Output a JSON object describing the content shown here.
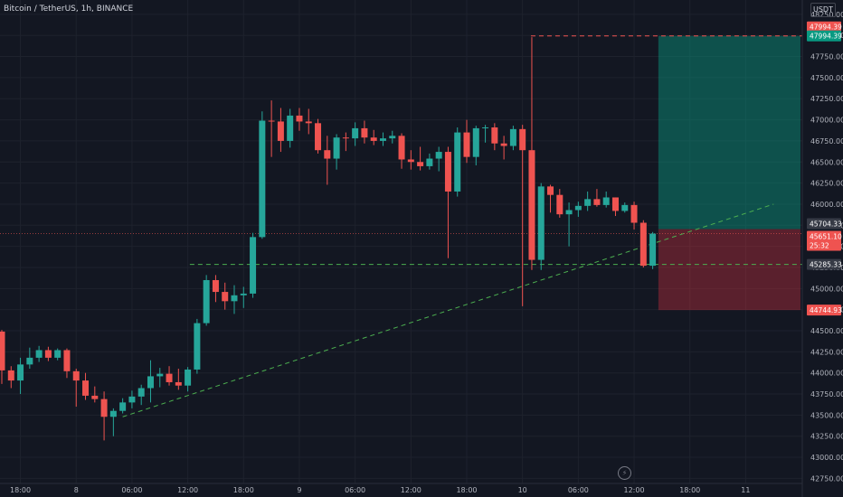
{
  "header": {
    "title": "Bitcoin / TetherUS, 1h, BINANCE",
    "unit": "USDT"
  },
  "icons": {
    "replay": "lightning-icon"
  },
  "colors": {
    "background": "#131722",
    "up": "#26a69a",
    "down": "#ef5350",
    "grid": "#1e222d",
    "text": "#b2b5be"
  },
  "chart_data": {
    "type": "candlestick",
    "symbol": "Bitcoin / TetherUS",
    "interval": "1h",
    "exchange": "BINANCE",
    "ylim": [
      42690,
      48420
    ],
    "y_ticks": [
      42750,
      43000,
      43250,
      43500,
      43750,
      44000,
      44250,
      44500,
      44750,
      45000,
      45250,
      45500,
      45750,
      46000,
      46250,
      46500,
      46750,
      47000,
      47250,
      47500,
      47750,
      48000,
      48250
    ],
    "x_ticks": [
      {
        "label": "18:00",
        "t": 2
      },
      {
        "label": "8",
        "t": 8
      },
      {
        "label": "06:00",
        "t": 14
      },
      {
        "label": "12:00",
        "t": 20
      },
      {
        "label": "18:00",
        "t": 26
      },
      {
        "label": "9",
        "t": 32
      },
      {
        "label": "06:00",
        "t": 38
      },
      {
        "label": "12:00",
        "t": 44
      },
      {
        "label": "18:00",
        "t": 50
      },
      {
        "label": "10",
        "t": 56
      },
      {
        "label": "06:00",
        "t": 62
      },
      {
        "label": "12:00",
        "t": 68
      },
      {
        "label": "18:00",
        "t": 74
      },
      {
        "label": "11",
        "t": 80
      }
    ],
    "candles": [
      {
        "t": 0,
        "o": 44490,
        "h": 44510,
        "l": 43870,
        "c": 44030
      },
      {
        "t": 1,
        "o": 44030,
        "h": 44080,
        "l": 43820,
        "c": 43910
      },
      {
        "t": 2,
        "o": 43910,
        "h": 44180,
        "l": 43750,
        "c": 44100
      },
      {
        "t": 3,
        "o": 44100,
        "h": 44300,
        "l": 44050,
        "c": 44180
      },
      {
        "t": 4,
        "o": 44180,
        "h": 44320,
        "l": 44130,
        "c": 44270
      },
      {
        "t": 5,
        "o": 44270,
        "h": 44310,
        "l": 44140,
        "c": 44180
      },
      {
        "t": 6,
        "o": 44180,
        "h": 44290,
        "l": 44150,
        "c": 44270
      },
      {
        "t": 7,
        "o": 44270,
        "h": 44290,
        "l": 43940,
        "c": 44020
      },
      {
        "t": 8,
        "o": 44020,
        "h": 44050,
        "l": 43600,
        "c": 43910
      },
      {
        "t": 9,
        "o": 43910,
        "h": 44000,
        "l": 43680,
        "c": 43730
      },
      {
        "t": 10,
        "o": 43730,
        "h": 43840,
        "l": 43650,
        "c": 43690
      },
      {
        "t": 11,
        "o": 43690,
        "h": 43780,
        "l": 43200,
        "c": 43480
      },
      {
        "t": 12,
        "o": 43480,
        "h": 43580,
        "l": 43250,
        "c": 43550
      },
      {
        "t": 13,
        "o": 43550,
        "h": 43700,
        "l": 43520,
        "c": 43650
      },
      {
        "t": 14,
        "o": 43650,
        "h": 43790,
        "l": 43580,
        "c": 43720
      },
      {
        "t": 15,
        "o": 43720,
        "h": 43860,
        "l": 43620,
        "c": 43820
      },
      {
        "t": 16,
        "o": 43820,
        "h": 44150,
        "l": 43650,
        "c": 43960
      },
      {
        "t": 17,
        "o": 43960,
        "h": 44060,
        "l": 43830,
        "c": 43990
      },
      {
        "t": 18,
        "o": 43990,
        "h": 44080,
        "l": 43850,
        "c": 43890
      },
      {
        "t": 19,
        "o": 43890,
        "h": 44050,
        "l": 43800,
        "c": 43850
      },
      {
        "t": 20,
        "o": 43850,
        "h": 44070,
        "l": 43780,
        "c": 44040
      },
      {
        "t": 21,
        "o": 44040,
        "h": 44640,
        "l": 43990,
        "c": 44590
      },
      {
        "t": 22,
        "o": 44590,
        "h": 45160,
        "l": 44560,
        "c": 45100
      },
      {
        "t": 23,
        "o": 45100,
        "h": 45160,
        "l": 44840,
        "c": 44960
      },
      {
        "t": 24,
        "o": 44960,
        "h": 45070,
        "l": 44750,
        "c": 44850
      },
      {
        "t": 25,
        "o": 44850,
        "h": 45040,
        "l": 44700,
        "c": 44920
      },
      {
        "t": 26,
        "o": 44920,
        "h": 45020,
        "l": 44770,
        "c": 44940
      },
      {
        "t": 27,
        "o": 44940,
        "h": 45660,
        "l": 44890,
        "c": 45610
      },
      {
        "t": 28,
        "o": 45610,
        "h": 47100,
        "l": 45590,
        "c": 46990
      },
      {
        "t": 29,
        "o": 46990,
        "h": 47230,
        "l": 46560,
        "c": 46980
      },
      {
        "t": 30,
        "o": 46980,
        "h": 47140,
        "l": 46620,
        "c": 46750
      },
      {
        "t": 31,
        "o": 46750,
        "h": 47130,
        "l": 46670,
        "c": 47050
      },
      {
        "t": 32,
        "o": 47050,
        "h": 47140,
        "l": 46870,
        "c": 46980
      },
      {
        "t": 33,
        "o": 46980,
        "h": 47130,
        "l": 46830,
        "c": 46960
      },
      {
        "t": 34,
        "o": 46960,
        "h": 47010,
        "l": 46600,
        "c": 46640
      },
      {
        "t": 35,
        "o": 46640,
        "h": 46810,
        "l": 46230,
        "c": 46540
      },
      {
        "t": 36,
        "o": 46540,
        "h": 46830,
        "l": 46410,
        "c": 46790
      },
      {
        "t": 37,
        "o": 46790,
        "h": 46850,
        "l": 46630,
        "c": 46780
      },
      {
        "t": 38,
        "o": 46780,
        "h": 46970,
        "l": 46690,
        "c": 46900
      },
      {
        "t": 39,
        "o": 46900,
        "h": 46990,
        "l": 46720,
        "c": 46790
      },
      {
        "t": 40,
        "o": 46790,
        "h": 46880,
        "l": 46700,
        "c": 46750
      },
      {
        "t": 41,
        "o": 46750,
        "h": 46850,
        "l": 46690,
        "c": 46780
      },
      {
        "t": 42,
        "o": 46780,
        "h": 46870,
        "l": 46720,
        "c": 46810
      },
      {
        "t": 43,
        "o": 46810,
        "h": 46840,
        "l": 46420,
        "c": 46530
      },
      {
        "t": 44,
        "o": 46530,
        "h": 46640,
        "l": 46410,
        "c": 46500
      },
      {
        "t": 45,
        "o": 46500,
        "h": 46680,
        "l": 46400,
        "c": 46450
      },
      {
        "t": 46,
        "o": 46450,
        "h": 46600,
        "l": 46410,
        "c": 46540
      },
      {
        "t": 47,
        "o": 46540,
        "h": 46680,
        "l": 46390,
        "c": 46620
      },
      {
        "t": 48,
        "o": 46620,
        "h": 46680,
        "l": 45360,
        "c": 46150
      },
      {
        "t": 49,
        "o": 46150,
        "h": 46910,
        "l": 46090,
        "c": 46850
      },
      {
        "t": 50,
        "o": 46850,
        "h": 47000,
        "l": 46490,
        "c": 46560
      },
      {
        "t": 51,
        "o": 46560,
        "h": 46930,
        "l": 46460,
        "c": 46900
      },
      {
        "t": 52,
        "o": 46900,
        "h": 46940,
        "l": 46730,
        "c": 46910
      },
      {
        "t": 53,
        "o": 46910,
        "h": 46960,
        "l": 46640,
        "c": 46720
      },
      {
        "t": 54,
        "o": 46720,
        "h": 46810,
        "l": 46530,
        "c": 46690
      },
      {
        "t": 55,
        "o": 46690,
        "h": 46930,
        "l": 46640,
        "c": 46890
      },
      {
        "t": 56,
        "o": 46890,
        "h": 46940,
        "l": 44790,
        "c": 46640
      },
      {
        "t": 57,
        "o": 46640,
        "h": 47980,
        "l": 45220,
        "c": 45340
      },
      {
        "t": 58,
        "o": 45340,
        "h": 46250,
        "l": 45220,
        "c": 46210
      },
      {
        "t": 59,
        "o": 46210,
        "h": 46230,
        "l": 45900,
        "c": 46110
      },
      {
        "t": 60,
        "o": 46110,
        "h": 46180,
        "l": 45840,
        "c": 45880
      },
      {
        "t": 61,
        "o": 45880,
        "h": 46020,
        "l": 45500,
        "c": 45930
      },
      {
        "t": 62,
        "o": 45930,
        "h": 46030,
        "l": 45850,
        "c": 45980
      },
      {
        "t": 63,
        "o": 45980,
        "h": 46150,
        "l": 45920,
        "c": 46060
      },
      {
        "t": 64,
        "o": 46060,
        "h": 46180,
        "l": 45970,
        "c": 45990
      },
      {
        "t": 65,
        "o": 45990,
        "h": 46150,
        "l": 45960,
        "c": 46080
      },
      {
        "t": 66,
        "o": 46080,
        "h": 46080,
        "l": 45860,
        "c": 45920
      },
      {
        "t": 67,
        "o": 45920,
        "h": 46020,
        "l": 45900,
        "c": 45990
      },
      {
        "t": 68,
        "o": 45990,
        "h": 46030,
        "l": 45700,
        "c": 45780
      },
      {
        "t": 69,
        "o": 45780,
        "h": 45810,
        "l": 45250,
        "c": 45270
      },
      {
        "t": 70,
        "o": 45270,
        "h": 45670,
        "l": 45230,
        "c": 45651.1
      }
    ],
    "annotations": {
      "last_price": 45651.1,
      "countdown": "25:32",
      "target_price": 47994.39,
      "entry_price": 45704.33,
      "stop_price": 44744.93,
      "support_price": 45285.33,
      "target_line_start_t": 57,
      "support_line_start_t": 21,
      "position_start_t": 71,
      "trendline": [
        {
          "t": 13,
          "p": 43480
        },
        {
          "t": 83,
          "p": 46000
        }
      ]
    },
    "labels": {
      "target": "47994.39",
      "target_axis": "47994.39",
      "entry": "45704.33",
      "last": "45651.10",
      "countdown": "25:32",
      "support": "45285.33",
      "stop": "44744.93"
    }
  }
}
